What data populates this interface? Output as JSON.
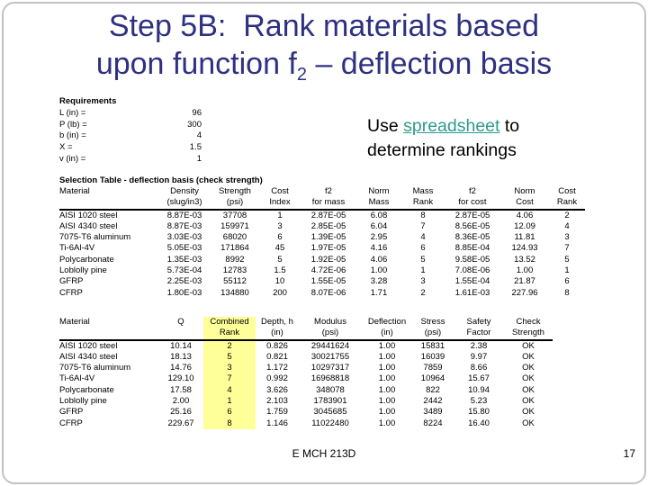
{
  "slide": {
    "title_line1": "Step 5B:  Rank materials based",
    "title_line2_prefix": "upon function f",
    "title_line2_sub": "2",
    "title_line2_suffix": " – deflection basis",
    "footer": "E MCH 213D",
    "page_number": "17"
  },
  "colors": {
    "title_navy": "#2e3180",
    "link_teal": "#2e9b8f",
    "combined_rank_highlight": "#ffff99"
  },
  "requirements": {
    "title": "Requirements",
    "rows": [
      {
        "label": "L (in) =",
        "value": "96"
      },
      {
        "label": "P (lb) =",
        "value": "300"
      },
      {
        "label": "b (in) =",
        "value": "4"
      },
      {
        "label": "X =",
        "value": "1.5"
      },
      {
        "label": "v (in) =",
        "value": "1"
      }
    ]
  },
  "note": {
    "pre": "Use ",
    "link": "spreadsheet",
    "post": " to",
    "line2": "determine rankings"
  },
  "table1": {
    "title": "Selection Table - deflection basis (check strength)",
    "headers": [
      [
        "Material",
        ""
      ],
      [
        "Density",
        "(slug/in3)"
      ],
      [
        "Strength",
        "(psi)"
      ],
      [
        "Cost",
        "Index"
      ],
      [
        "f2",
        "for mass"
      ],
      [
        "Norm",
        "Mass"
      ],
      [
        "Mass",
        "Rank"
      ],
      [
        "f2",
        "for cost"
      ],
      [
        "Norm",
        "Cost"
      ],
      [
        "Cost",
        "Rank"
      ]
    ],
    "rows": [
      [
        "AISI 1020 steel",
        "8.87E-03",
        "37708",
        "1",
        "2.87E-05",
        "6.08",
        "8",
        "2.87E-05",
        "4.06",
        "2"
      ],
      [
        "AISI 4340 steel",
        "8.87E-03",
        "159971",
        "3",
        "2.85E-05",
        "6.04",
        "7",
        "8.56E-05",
        "12.09",
        "4"
      ],
      [
        "7075-T6 aluminum",
        "3.03E-03",
        "68020",
        "6",
        "1.39E-05",
        "2.95",
        "4",
        "8.36E-05",
        "11.81",
        "3"
      ],
      [
        "Ti-6Al-4V",
        "5.05E-03",
        "171864",
        "45",
        "1.97E-05",
        "4.16",
        "6",
        "8.85E-04",
        "124.93",
        "7"
      ],
      [
        "Polycarbonate",
        "1.35E-03",
        "8992",
        "5",
        "1.92E-05",
        "4.06",
        "5",
        "9.58E-05",
        "13.52",
        "5"
      ],
      [
        "Loblolly pine",
        "5.73E-04",
        "12783",
        "1.5",
        "4.72E-06",
        "1.00",
        "1",
        "7.08E-06",
        "1.00",
        "1"
      ],
      [
        "GFRP",
        "2.25E-03",
        "55112",
        "10",
        "1.55E-05",
        "3.28",
        "3",
        "1.55E-04",
        "21.87",
        "6"
      ],
      [
        "CFRP",
        "1.80E-03",
        "134880",
        "200",
        "8.07E-06",
        "1.71",
        "2",
        "1.61E-03",
        "227.96",
        "8"
      ]
    ]
  },
  "table2": {
    "headers": [
      [
        "Material",
        ""
      ],
      [
        "Q",
        ""
      ],
      [
        "Combined",
        "Rank"
      ],
      [
        "Depth, h",
        "(in)"
      ],
      [
        "Modulus",
        "(psi)"
      ],
      [
        "Deflection",
        "(in)"
      ],
      [
        "Stress",
        "(psi)"
      ],
      [
        "Safety",
        "Factor"
      ],
      [
        "Check",
        "Strength"
      ]
    ],
    "rows": [
      [
        "AISI 1020 steel",
        "10.14",
        "2",
        "0.826",
        "29441624",
        "1.00",
        "15831",
        "2.38",
        "OK"
      ],
      [
        "AISI 4340 steel",
        "18.13",
        "5",
        "0.821",
        "30021755",
        "1.00",
        "16039",
        "9.97",
        "OK"
      ],
      [
        "7075-T6 aluminum",
        "14.76",
        "3",
        "1.172",
        "10297317",
        "1.00",
        "7859",
        "8.66",
        "OK"
      ],
      [
        "Ti-6Al-4V",
        "129.10",
        "7",
        "0.992",
        "16968818",
        "1.00",
        "10964",
        "15.67",
        "OK"
      ],
      [
        "Polycarbonate",
        "17.58",
        "4",
        "3.626",
        "348078",
        "1.00",
        "822",
        "10.94",
        "OK"
      ],
      [
        "Loblolly pine",
        "2.00",
        "1",
        "2.103",
        "1783901",
        "1.00",
        "2442",
        "5.23",
        "OK"
      ],
      [
        "GFRP",
        "25.16",
        "6",
        "1.759",
        "3045685",
        "1.00",
        "3489",
        "15.80",
        "OK"
      ],
      [
        "CFRP",
        "229.67",
        "8",
        "1.146",
        "11022480",
        "1.00",
        "8224",
        "16.40",
        "OK"
      ]
    ]
  }
}
